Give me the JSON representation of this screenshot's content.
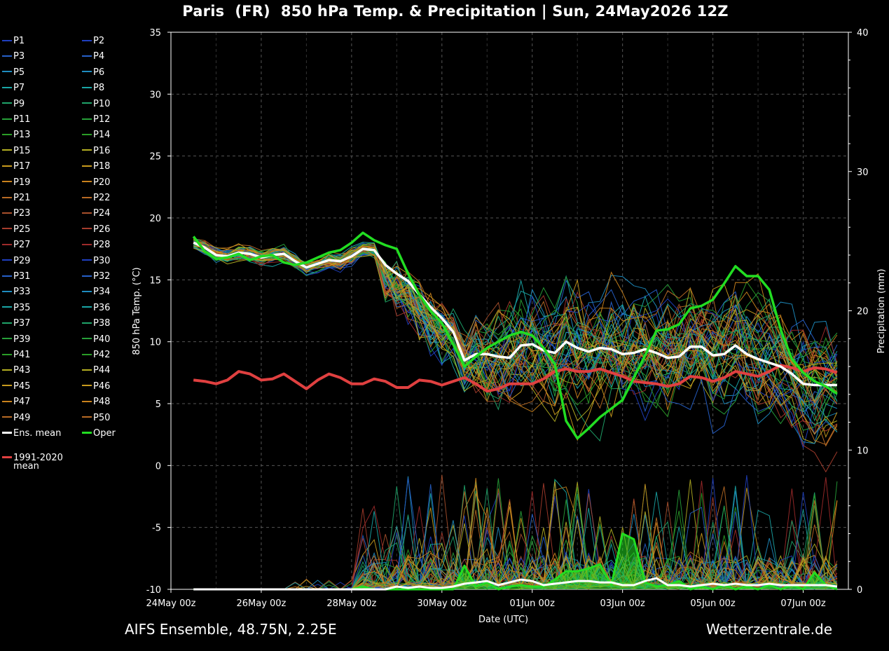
{
  "title": "Paris  (FR)  850 hPa Temp. & Precipitation | Sun, 24May2026 12Z",
  "footer": {
    "left": "AIFS Ensemble, 48.75N, 2.25E",
    "right": "Wetterzentrale.de"
  },
  "colors": {
    "background": "#000000",
    "ens_mean": "#ffffff",
    "oper": "#22dd22",
    "climate": "#e04040"
  },
  "legend": {
    "members": [
      "P1",
      "P2",
      "P3",
      "P4",
      "P5",
      "P6",
      "P7",
      "P8",
      "P9",
      "P10",
      "P11",
      "P12",
      "P13",
      "P14",
      "P15",
      "P16",
      "P17",
      "P18",
      "P19",
      "P20",
      "P21",
      "P22",
      "P23",
      "P24",
      "P25",
      "P26",
      "P27",
      "P28",
      "P29",
      "P30",
      "P31",
      "P32",
      "P33",
      "P34",
      "P35",
      "P36",
      "P37",
      "P38",
      "P39",
      "P40",
      "P41",
      "P42",
      "P43",
      "P44",
      "P45",
      "P46",
      "P47",
      "P48",
      "P49",
      "P50"
    ],
    "ens_mean": "Ens. mean",
    "oper": "Oper",
    "climate_line1": "1991-2020",
    "climate_line2": "mean"
  },
  "chart_data": {
    "type": "line",
    "title": "Paris  (FR)  850 hPa Temp. & Precipitation | Sun, 24May2026 12Z",
    "xlabel": "Date (UTC)",
    "ylabel": "850 hPa Temp. (°C)",
    "y2label": "Precipitation (mm)",
    "ylim": [
      -10,
      35
    ],
    "y2lim": [
      0,
      40
    ],
    "yticks": [
      "-10",
      "-5",
      "0",
      "5",
      "10",
      "15",
      "20",
      "25",
      "30",
      "35"
    ],
    "y2ticks": [
      "0",
      "10",
      "20",
      "30",
      "40"
    ],
    "xtick_labels": [
      "24May 00z",
      "26May 00z",
      "28May 00z",
      "30May 00z",
      "01Jun 00z",
      "03Jun 00z",
      "05Jun 00z",
      "07Jun 00z"
    ],
    "x_hours": {
      "start": 12,
      "end": 360,
      "tick_spacing_hours": 48
    },
    "grid": true,
    "series": [
      {
        "name": "Ens. mean",
        "step_hours": 6,
        "start_hour": 12,
        "values": [
          18.0,
          17.6,
          17.0,
          16.9,
          17.2,
          17.1,
          16.8,
          17.0,
          17.1,
          16.5,
          16.0,
          16.3,
          16.6,
          16.5,
          16.9,
          17.5,
          17.4,
          16.2,
          15.5,
          14.9,
          13.8,
          12.8,
          11.9,
          10.8,
          8.5,
          9.0,
          9.0,
          8.8,
          8.7,
          9.7,
          9.8,
          9.3,
          9.1,
          10.0,
          9.5,
          9.2,
          9.5,
          9.4,
          9.0,
          9.1,
          9.4,
          9.1,
          8.7,
          8.8,
          9.6,
          9.6,
          8.9,
          9.0,
          9.7,
          9.0,
          8.6,
          8.3,
          8.0,
          7.4,
          6.6,
          6.5,
          6.5,
          6.5
        ]
      },
      {
        "name": "Oper",
        "step_hours": 6,
        "start_hour": 12,
        "values": [
          18.5,
          17.3,
          16.7,
          16.8,
          17.1,
          16.6,
          16.9,
          17.0,
          16.4,
          16.2,
          16.4,
          16.8,
          17.2,
          17.4,
          18.0,
          18.8,
          18.2,
          17.8,
          17.5,
          15.5,
          13.8,
          12.5,
          11.5,
          9.8,
          8.0,
          8.8,
          9.5,
          10.0,
          10.5,
          10.8,
          10.5,
          9.5,
          8.2,
          3.6,
          2.2,
          3.0,
          3.9,
          4.6,
          5.3,
          7.1,
          8.9,
          10.9,
          11.0,
          11.4,
          12.7,
          12.9,
          13.4,
          14.7,
          16.1,
          15.3,
          15.3,
          14.2,
          11.0,
          8.6,
          7.5,
          6.8,
          6.4,
          5.8
        ]
      },
      {
        "name": "1991-2020 mean",
        "step_hours": 6,
        "start_hour": 12,
        "values": [
          6.9,
          6.8,
          6.6,
          6.9,
          7.6,
          7.4,
          6.9,
          7.0,
          7.4,
          6.8,
          6.2,
          6.9,
          7.4,
          7.1,
          6.6,
          6.6,
          7.0,
          6.8,
          6.3,
          6.3,
          6.9,
          6.8,
          6.5,
          6.8,
          7.1,
          6.6,
          6.0,
          6.2,
          6.6,
          6.6,
          6.6,
          7.0,
          7.6,
          7.8,
          7.6,
          7.6,
          7.8,
          7.5,
          7.2,
          6.8,
          6.7,
          6.6,
          6.4,
          6.6,
          7.2,
          7.1,
          6.8,
          7.1,
          7.6,
          7.4,
          7.2,
          7.6,
          8.1,
          7.9,
          7.6,
          7.9,
          7.8,
          7.5
        ]
      },
      {
        "name": "Ens. mean precipitation",
        "axis": "y2",
        "step_hours": 6,
        "start_hour": 12,
        "values": [
          0,
          0,
          0,
          0,
          0,
          0,
          0,
          0,
          0,
          0,
          0,
          0,
          0,
          0,
          0,
          0,
          0,
          0,
          0.2,
          0.1,
          0.2,
          0.1,
          0.1,
          0.2,
          0.4,
          0.5,
          0.6,
          0.3,
          0.5,
          0.7,
          0.6,
          0.3,
          0.4,
          0.5,
          0.6,
          0.6,
          0.5,
          0.5,
          0.3,
          0.3,
          0.6,
          0.8,
          0.3,
          0.3,
          0.2,
          0.3,
          0.4,
          0.3,
          0.4,
          0.3,
          0.3,
          0.4,
          0.3,
          0.3,
          0.3,
          0.3,
          0.3,
          0.2
        ]
      },
      {
        "name": "Oper precipitation",
        "axis": "y2",
        "step_hours": 6,
        "start_hour": 12,
        "values": [
          0,
          0,
          0,
          0,
          0,
          0,
          0,
          0,
          0,
          0,
          0,
          0,
          0,
          0,
          0,
          0.2,
          0,
          0,
          0,
          0,
          0,
          0,
          0,
          0,
          1.7,
          0.2,
          0.5,
          0,
          0.2,
          0.3,
          0.2,
          0.2,
          0.7,
          1.3,
          1.3,
          1.5,
          1.8,
          0.3,
          4.0,
          3.6,
          0.5,
          0.2,
          0.3,
          0.6,
          0,
          0.2,
          0,
          0.3,
          0,
          0.2,
          0,
          0.3,
          0,
          0.3,
          0,
          1.2,
          0.3,
          0
        ]
      }
    ],
    "members_note": "50 perturbed members (P1–P50) shown as thin coloured lines spreading from ~17°C to between 0 and 22°C after 30 May."
  }
}
